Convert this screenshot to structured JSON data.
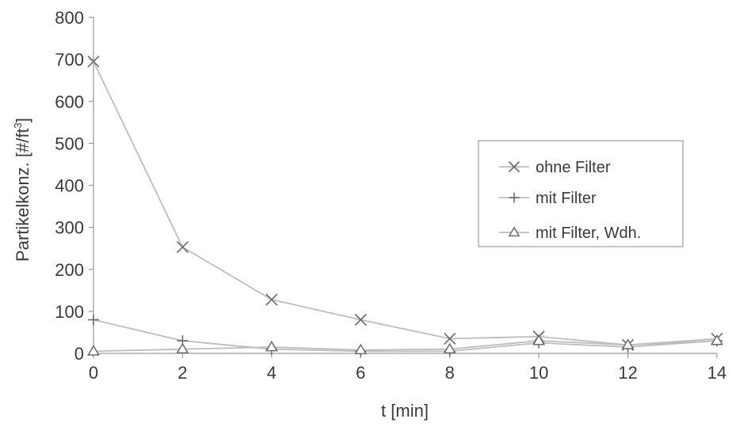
{
  "chart_data": {
    "type": "line",
    "xlabel": "t [min]",
    "ylabel_main": "Partikelkonz. [#/ft",
    "ylabel_sup": "3",
    "ylabel_end": "]",
    "xlim": [
      0,
      14
    ],
    "ylim": [
      0,
      800
    ],
    "x_ticks": [
      0,
      2,
      4,
      6,
      8,
      10,
      12,
      14
    ],
    "y_ticks": [
      0,
      100,
      200,
      300,
      400,
      500,
      600,
      700,
      800
    ],
    "grid": false,
    "legend_position": "right",
    "colors": {
      "line": "#bdbdbd",
      "marker": "#6a6a6a",
      "text": "#3a3a3a"
    },
    "series": [
      {
        "name": "ohne Filter",
        "marker": "x-mark",
        "x": [
          0,
          2,
          4,
          6,
          8,
          10,
          12,
          14
        ],
        "y": [
          695,
          253,
          128,
          80,
          35,
          40,
          20,
          35
        ]
      },
      {
        "name": "mit Filter",
        "marker": "plus",
        "x": [
          0,
          2,
          4,
          6,
          8,
          10,
          12,
          14
        ],
        "y": [
          80,
          30,
          10,
          5,
          5,
          25,
          15,
          30
        ]
      },
      {
        "name": "mit Filter, Wdh.",
        "marker": "triangle",
        "x": [
          0,
          2,
          4,
          6,
          8,
          10,
          12,
          14
        ],
        "y": [
          5,
          10,
          15,
          8,
          10,
          30,
          20,
          30
        ]
      }
    ]
  }
}
